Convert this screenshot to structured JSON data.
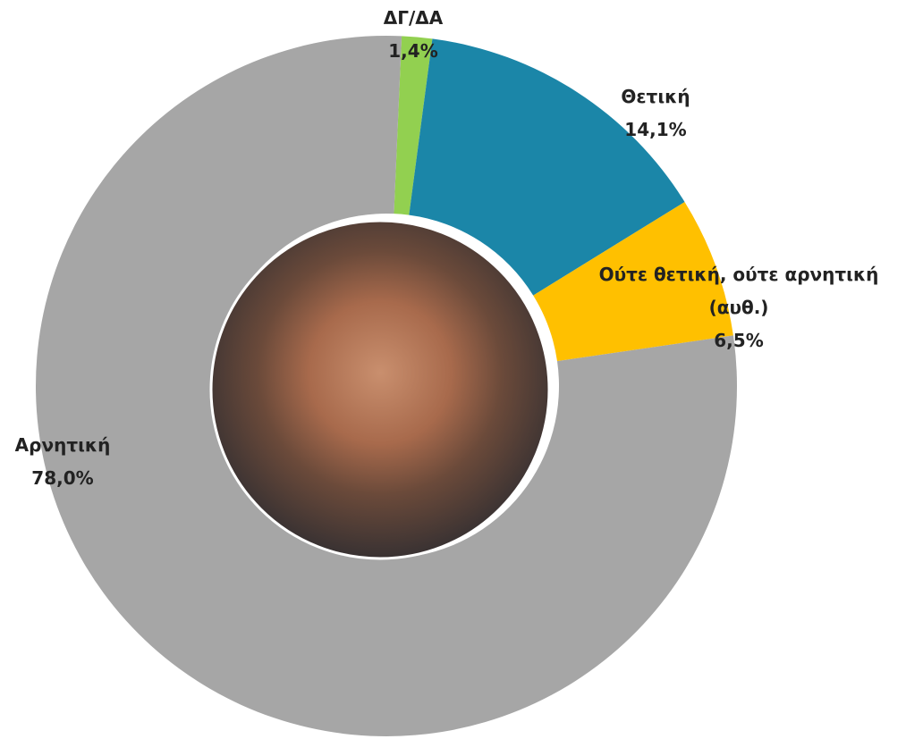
{
  "chart_data": {
    "type": "donut",
    "categories": [
      "ΔΓ/ΔΑ",
      "Θετική",
      "Ούτε θετική, ούτε αρνητική (αυθ.)",
      "Αρνητική"
    ],
    "values": [
      1.4,
      14.1,
      6.5,
      78.0
    ],
    "value_labels": [
      "1,4%",
      "14,1%",
      "6,5%",
      "78,0%"
    ],
    "colors": [
      "#92d050",
      "#1b86a8",
      "#ffc000",
      "#a6a6a6"
    ]
  }
}
